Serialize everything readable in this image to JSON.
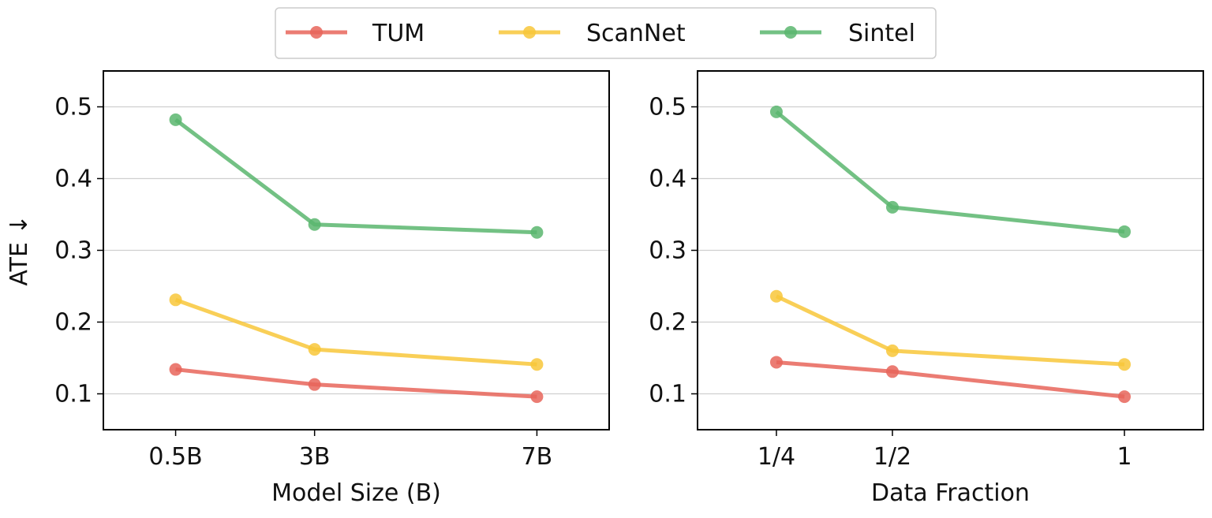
{
  "legend": {
    "placement": "top-center",
    "items": [
      {
        "label": "TUM",
        "color": "#e8655a"
      },
      {
        "label": "ScanNet",
        "color": "#f8c73a"
      },
      {
        "label": "Sintel",
        "color": "#5bb66f"
      }
    ]
  },
  "chart_data": [
    {
      "type": "line",
      "categories": [
        "0.5B",
        "3B",
        "7B"
      ],
      "x": [
        0.5,
        3,
        7
      ],
      "xlim": [
        -0.8,
        8.3
      ],
      "ylim": [
        0.05,
        0.55
      ],
      "yticks": [
        0.1,
        0.2,
        0.3,
        0.4,
        0.5
      ],
      "ytick_labels": [
        "0.1",
        "0.2",
        "0.3",
        "0.4",
        "0.5"
      ],
      "xlabel": "Model Size (B)",
      "ylabel": "ATE ↓",
      "grid": "horizontal",
      "series": [
        {
          "name": "TUM",
          "color": "#e8655a",
          "values": [
            0.134,
            0.113,
            0.096
          ]
        },
        {
          "name": "ScanNet",
          "color": "#f8c73a",
          "values": [
            0.231,
            0.162,
            0.141
          ]
        },
        {
          "name": "Sintel",
          "color": "#5bb66f",
          "values": [
            0.482,
            0.336,
            0.325
          ]
        }
      ]
    },
    {
      "type": "line",
      "categories": [
        "1/4",
        "1/2",
        "1"
      ],
      "x": [
        0.25,
        0.5,
        1.0
      ],
      "xlim": [
        0.08,
        1.17
      ],
      "ylim": [
        0.05,
        0.55
      ],
      "yticks": [
        0.1,
        0.2,
        0.3,
        0.4,
        0.5
      ],
      "ytick_labels": [
        "0.1",
        "0.2",
        "0.3",
        "0.4",
        "0.5"
      ],
      "xlabel": "Data Fraction",
      "ylabel": "",
      "grid": "horizontal",
      "series": [
        {
          "name": "TUM",
          "color": "#e8655a",
          "values": [
            0.144,
            0.131,
            0.096
          ]
        },
        {
          "name": "ScanNet",
          "color": "#f8c73a",
          "values": [
            0.236,
            0.16,
            0.141
          ]
        },
        {
          "name": "Sintel",
          "color": "#5bb66f",
          "values": [
            0.493,
            0.36,
            0.326
          ]
        }
      ]
    }
  ]
}
